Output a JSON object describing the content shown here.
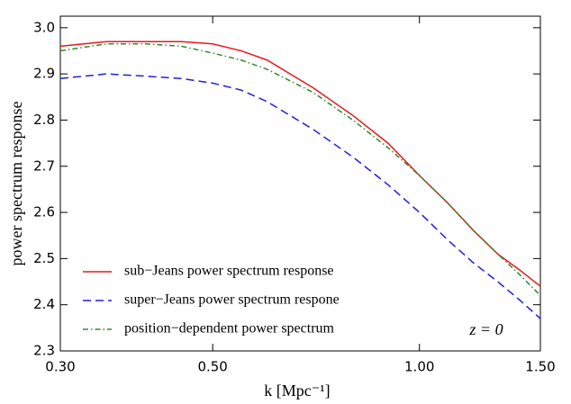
{
  "chart_data": {
    "type": "line",
    "xlabel": "k  [Mpc⁻¹]",
    "ylabel": "power spectrum response",
    "annotation": "z = 0",
    "x": [
      0.3,
      0.35,
      0.4,
      0.45,
      0.5,
      0.55,
      0.6,
      0.7,
      0.8,
      0.9,
      1.0,
      1.1,
      1.2,
      1.3,
      1.4,
      1.5
    ],
    "series": [
      {
        "name": "sub−Jeans power spectrum response",
        "color": "#e8191c",
        "linestyle": "solid",
        "values": [
          2.96,
          2.97,
          2.97,
          2.97,
          2.965,
          2.95,
          2.93,
          2.87,
          2.81,
          2.75,
          2.68,
          2.62,
          2.56,
          2.51,
          2.475,
          2.44
        ]
      },
      {
        "name": "super−Jeans power spectrum respone",
        "color": "#1f1fe6",
        "linestyle": "dashed",
        "values": [
          2.89,
          2.9,
          2.895,
          2.89,
          2.88,
          2.865,
          2.84,
          2.78,
          2.72,
          2.66,
          2.6,
          2.54,
          2.49,
          2.45,
          2.41,
          2.37
        ]
      },
      {
        "name": "position−dependent power spectrum",
        "color": "#2e8b2e",
        "linestyle": "dashdot",
        "values": [
          2.95,
          2.965,
          2.965,
          2.96,
          2.945,
          2.93,
          2.91,
          2.86,
          2.8,
          2.74,
          2.68,
          2.62,
          2.56,
          2.51,
          2.465,
          2.42
        ]
      }
    ],
    "xscale": "log",
    "xlim": [
      0.3,
      1.5
    ],
    "xticks": [
      {
        "value": 0.3,
        "label": "0.30"
      },
      {
        "value": 0.5,
        "label": "0.50"
      },
      {
        "value": 1.0,
        "label": "1.00"
      },
      {
        "value": 1.5,
        "label": "1.50"
      }
    ],
    "ylim": [
      2.3,
      3.025
    ],
    "yticks": [
      2.3,
      2.4,
      2.5,
      2.6,
      2.7,
      2.8,
      2.9,
      {
        "value": 3.0,
        "label": "3.0"
      }
    ],
    "grid": false,
    "legend": "lower left"
  }
}
